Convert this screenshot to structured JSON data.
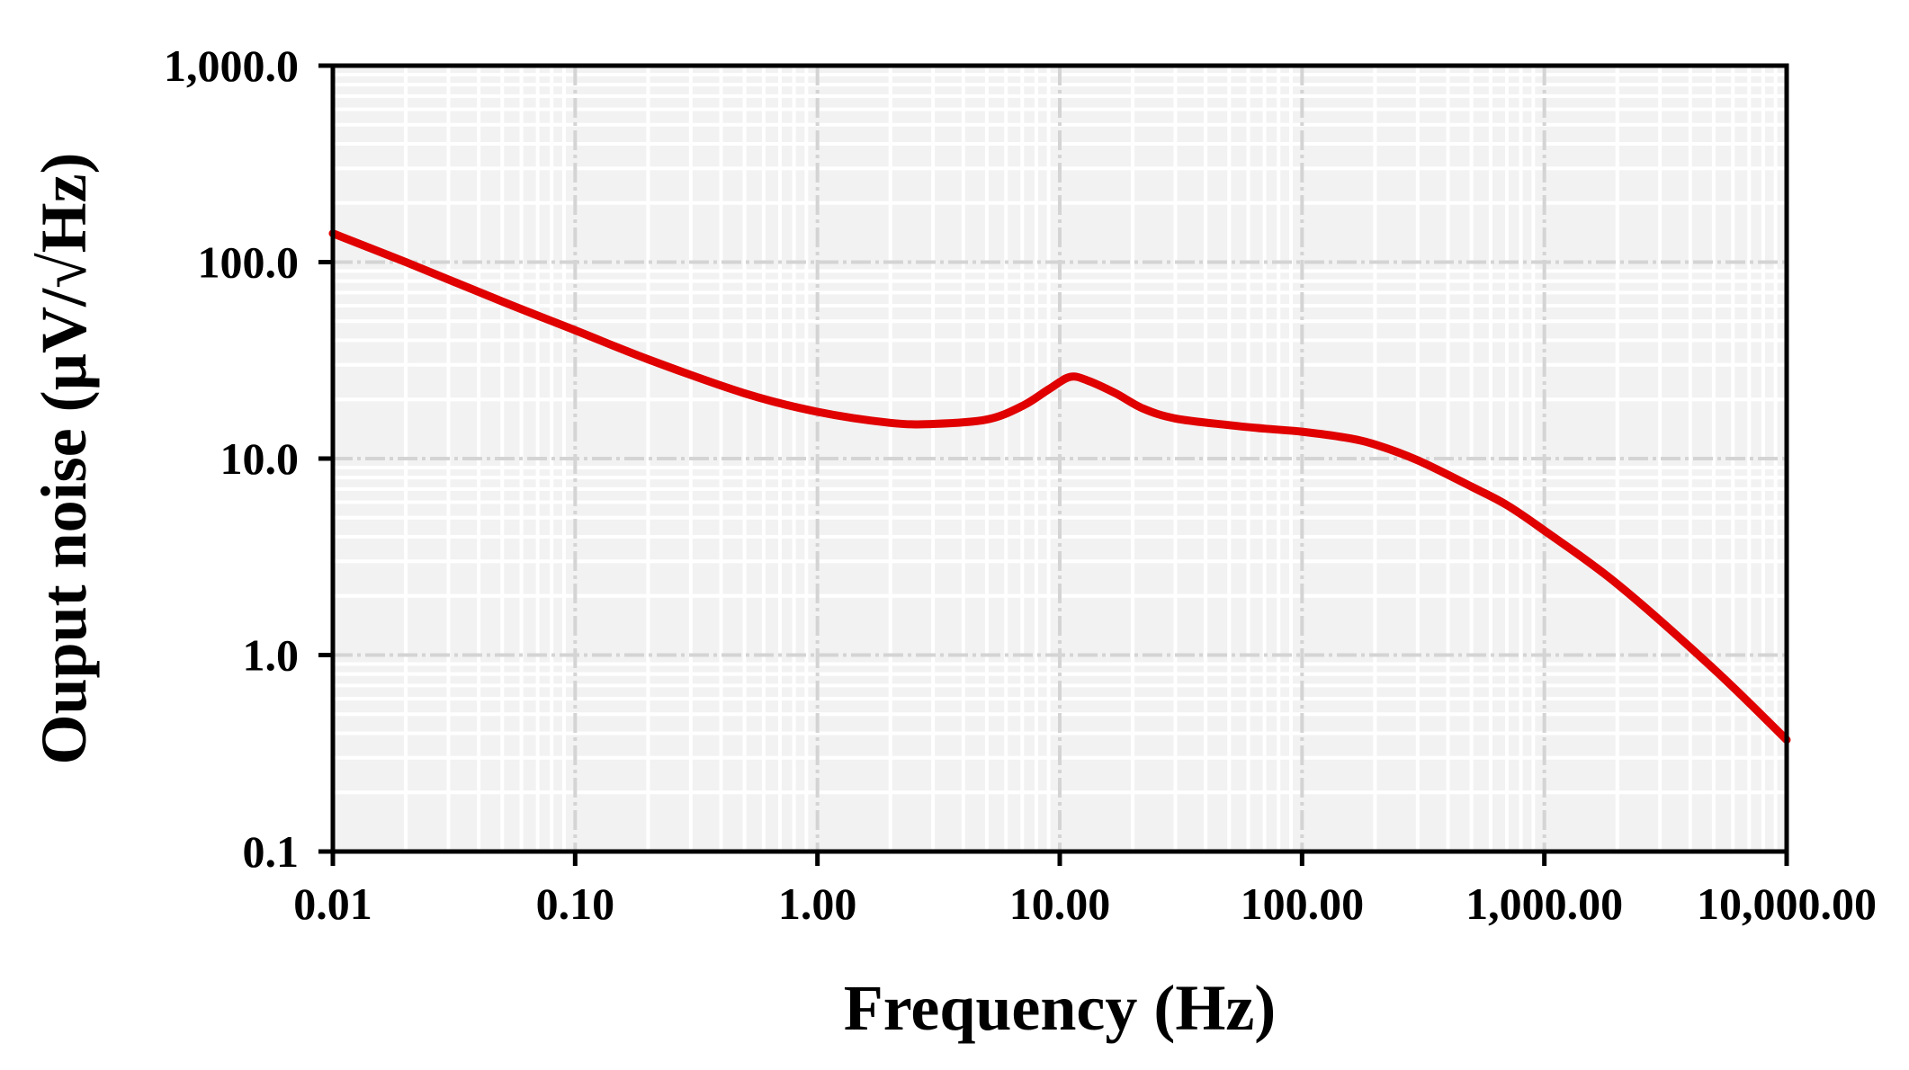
{
  "chart_data": {
    "type": "line",
    "title": "",
    "xlabel": "Frequency (Hz)",
    "ylabel": "Ouput noise (µV/√Hz)",
    "x_scale": "log",
    "y_scale": "log",
    "xlim": [
      0.01,
      10000
    ],
    "ylim": [
      0.1,
      1000
    ],
    "grid": true,
    "legend": "none",
    "x_ticks": [
      {
        "value": 0.01,
        "label": "0.01"
      },
      {
        "value": 0.1,
        "label": "0.10"
      },
      {
        "value": 1,
        "label": "1.00"
      },
      {
        "value": 10,
        "label": "10.00"
      },
      {
        "value": 100,
        "label": "100.00"
      },
      {
        "value": 1000,
        "label": "1,000.00"
      },
      {
        "value": 10000,
        "label": "10,000.00"
      }
    ],
    "y_ticks": [
      {
        "value": 0.1,
        "label": "0.1"
      },
      {
        "value": 1,
        "label": "1.0"
      },
      {
        "value": 10,
        "label": "10.0"
      },
      {
        "value": 100,
        "label": "100.0"
      },
      {
        "value": 1000,
        "label": "1,000.0"
      }
    ],
    "series": [
      {
        "color": "#e00000",
        "x": [
          0.01,
          0.02,
          0.05,
          0.1,
          0.2,
          0.5,
          1,
          2,
          3,
          5,
          7,
          9,
          11,
          13,
          17,
          22,
          30,
          50,
          70,
          100,
          150,
          200,
          300,
          500,
          700,
          1000,
          2000,
          5000,
          10000
        ],
        "y": [
          140,
          100,
          63,
          45,
          32,
          21.5,
          17.3,
          15.2,
          15.0,
          15.8,
          18.5,
          22.5,
          26.0,
          25.0,
          21.5,
          18.0,
          16.0,
          14.8,
          14.2,
          13.7,
          12.8,
          11.8,
          9.8,
          7.2,
          5.8,
          4.3,
          2.3,
          0.85,
          0.37
        ]
      }
    ]
  },
  "colors": {
    "line": "#e00000",
    "plot_background": "#f2f2f2",
    "major_grid": "#d4d4d4",
    "minor_grid": "#ffffff",
    "axis": "#000000"
  }
}
